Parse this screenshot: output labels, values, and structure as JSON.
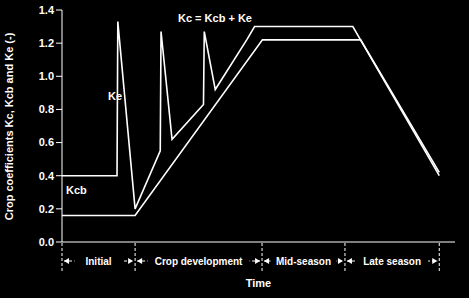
{
  "chart_data": {
    "type": "line",
    "y_label": "Crop coefficients Kc, Kcb and Ke (-)",
    "x_label": "Time",
    "xlim": [
      0,
      100
    ],
    "xticks": [],
    "ylim": [
      0,
      1.4
    ],
    "yticks": [
      {
        "value": 0,
        "label": "0.0"
      },
      0.2,
      0.4,
      0.6,
      0.8,
      {
        "value": 1,
        "label": "1.0"
      },
      1.2,
      1.4
    ],
    "tick_labels": "y",
    "grid": false,
    "series": [
      {
        "name": "Kc = Kcb + Ke",
        "color": "#ffffff",
        "x": [
          0,
          14,
          14.2,
          18.6,
          25,
          25.2,
          28,
          36,
          36.2,
          39,
          47,
          49,
          74,
          96
        ],
        "values": [
          0.4,
          0.4,
          1.33,
          0.2,
          0.55,
          1.27,
          0.62,
          0.83,
          1.27,
          0.92,
          1.22,
          1.3,
          1.3,
          0.4
        ]
      },
      {
        "name": "Kcb",
        "color": "#ffffff",
        "x": [
          0,
          18.6,
          51,
          76,
          96
        ],
        "values": [
          0.16,
          0.16,
          1.22,
          1.22,
          0.42
        ]
      }
    ],
    "annotations": [
      "Kcb",
      "Ke",
      "Kc = Kcb + Ke"
    ],
    "stages": [
      {
        "name": "Initial",
        "start": 0,
        "end": 18.6
      },
      {
        "name": "Crop development",
        "start": 18.6,
        "end": 50.9
      },
      {
        "name": "Mid-season",
        "start": 50.9,
        "end": 72
      },
      {
        "name": "Late season",
        "start": 72,
        "end": 96
      }
    ]
  }
}
